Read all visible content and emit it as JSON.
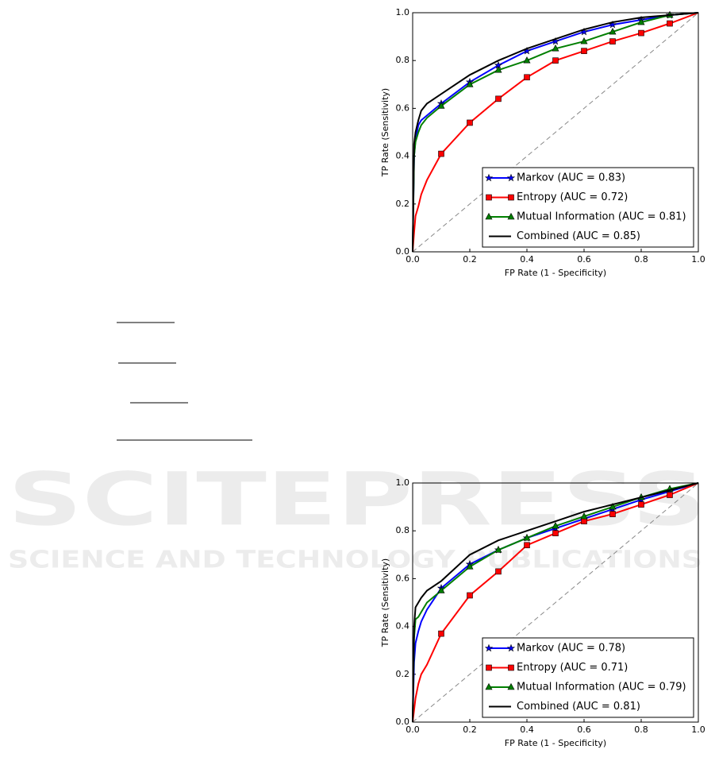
{
  "watermark": {
    "title": "SCITEPRESS",
    "subtitle": "SCIENCE AND TECHNOLOGY PUBLICATIONS"
  },
  "chart_data": [
    {
      "type": "line",
      "xlabel": "FP Rate (1 - Specificity)",
      "ylabel": "TP Rate (Sensitivity)",
      "x": [
        0,
        0.005,
        0.01,
        0.02,
        0.03,
        0.05,
        0.1,
        0.2,
        0.3,
        0.4,
        0.5,
        0.6,
        0.7,
        0.8,
        0.9,
        1.0
      ],
      "series": [
        {
          "name": "Markov (AUC = 0.83)",
          "color": "#0000ff",
          "marker": "star",
          "values": [
            0,
            0.4,
            0.47,
            0.53,
            0.55,
            0.57,
            0.62,
            0.71,
            0.78,
            0.84,
            0.88,
            0.92,
            0.95,
            0.97,
            0.99,
            1.0
          ]
        },
        {
          "name": "Entropy (AUC = 0.72)",
          "color": "#ff0000",
          "marker": "square",
          "values": [
            0,
            0.08,
            0.15,
            0.19,
            0.24,
            0.3,
            0.41,
            0.54,
            0.64,
            0.73,
            0.8,
            0.84,
            0.88,
            0.915,
            0.955,
            1.0
          ]
        },
        {
          "name": "Mutual Information (AUC = 0.81)",
          "color": "#007f00",
          "marker": "triangle",
          "values": [
            0,
            0.4,
            0.46,
            0.5,
            0.53,
            0.56,
            0.61,
            0.7,
            0.76,
            0.8,
            0.85,
            0.88,
            0.92,
            0.96,
            0.99,
            1.0
          ]
        },
        {
          "name": "Combined (AUC = 0.85)",
          "color": "#000000",
          "values": [
            0,
            0.45,
            0.5,
            0.55,
            0.59,
            0.62,
            0.66,
            0.74,
            0.8,
            0.85,
            0.89,
            0.93,
            0.96,
            0.98,
            0.99,
            1.0
          ]
        }
      ],
      "xlim": [
        0,
        1
      ],
      "ylim": [
        0,
        1
      ],
      "xticks": [
        {
          "value": 0,
          "label": "0.0"
        },
        0.2,
        0.4,
        0.6,
        0.8,
        {
          "value": 1,
          "label": "1.0"
        }
      ],
      "yticks": [
        {
          "value": 0,
          "label": "0.0"
        },
        0.2,
        0.4,
        0.6,
        0.8,
        {
          "value": 1,
          "label": "1.0"
        }
      ],
      "legend": "lower right"
    },
    {
      "type": "line",
      "xlabel": "FP Rate (1 - Specificity)",
      "ylabel": "TP Rate (Sensitivity)",
      "x": [
        0,
        0.005,
        0.01,
        0.02,
        0.03,
        0.05,
        0.1,
        0.2,
        0.3,
        0.4,
        0.5,
        0.6,
        0.7,
        0.8,
        0.9,
        1.0
      ],
      "series": [
        {
          "name": "Markov (AUC = 0.78)",
          "color": "#0000ff",
          "marker": "star",
          "values": [
            0,
            0.25,
            0.33,
            0.38,
            0.42,
            0.47,
            0.56,
            0.66,
            0.72,
            0.77,
            0.81,
            0.85,
            0.89,
            0.93,
            0.965,
            1.0
          ]
        },
        {
          "name": "Entropy (AUC = 0.71)",
          "color": "#ff0000",
          "marker": "square",
          "values": [
            0,
            0.05,
            0.1,
            0.16,
            0.2,
            0.24,
            0.37,
            0.53,
            0.63,
            0.74,
            0.79,
            0.84,
            0.87,
            0.91,
            0.95,
            1.0
          ]
        },
        {
          "name": "Mutual Information (AUC = 0.79)",
          "color": "#007f00",
          "marker": "triangle",
          "values": [
            0,
            0.35,
            0.43,
            0.44,
            0.46,
            0.5,
            0.55,
            0.65,
            0.72,
            0.77,
            0.82,
            0.86,
            0.9,
            0.94,
            0.975,
            1.0
          ]
        },
        {
          "name": "Combined (AUC = 0.81)",
          "color": "#000000",
          "values": [
            0,
            0.4,
            0.48,
            0.5,
            0.52,
            0.55,
            0.59,
            0.7,
            0.76,
            0.8,
            0.84,
            0.88,
            0.91,
            0.94,
            0.97,
            1.0
          ]
        }
      ],
      "xlim": [
        0,
        1
      ],
      "ylim": [
        0,
        1
      ],
      "xticks": [
        {
          "value": 0,
          "label": "0.0"
        },
        0.2,
        0.4,
        0.6,
        0.8,
        {
          "value": 1,
          "label": "1.0"
        }
      ],
      "yticks": [
        {
          "value": 0,
          "label": "0.0"
        },
        0.2,
        0.4,
        0.6,
        0.8,
        {
          "value": 1,
          "label": "1.0"
        }
      ],
      "legend": "lower right"
    }
  ]
}
